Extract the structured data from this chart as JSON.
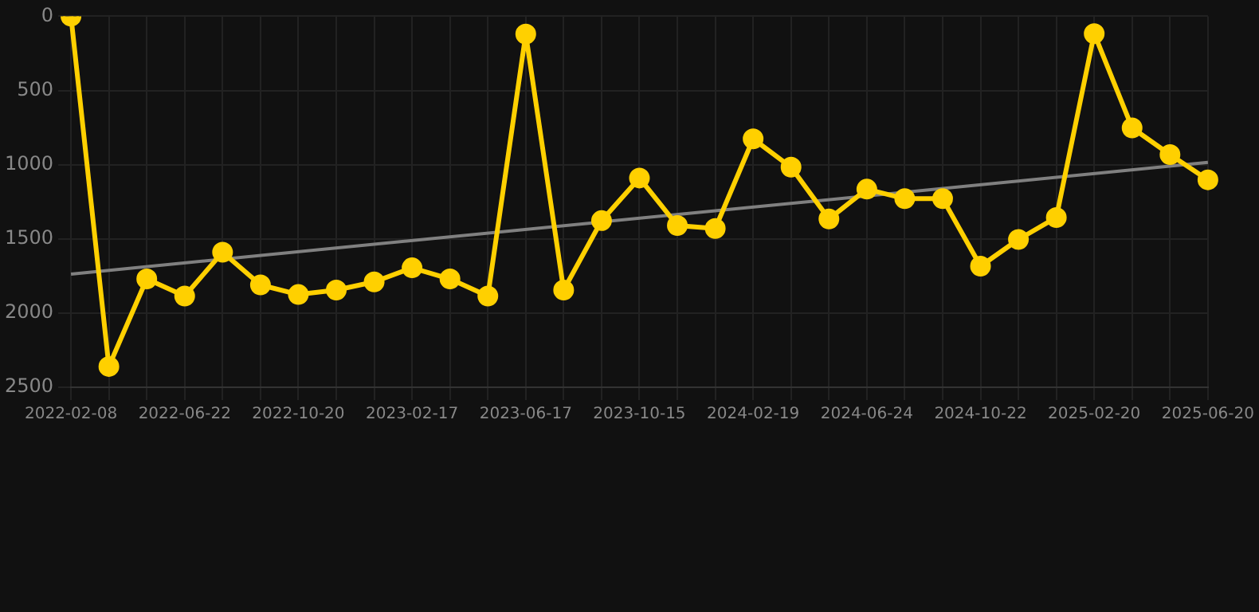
{
  "chart_data": {
    "type": "line",
    "categories": [
      "2022-02-08",
      null,
      null,
      "2022-06-22",
      null,
      null,
      "2022-10-20",
      null,
      null,
      "2023-02-17",
      null,
      null,
      "2023-06-17",
      null,
      null,
      "2023-10-15",
      null,
      null,
      "2024-02-19",
      null,
      null,
      "2024-06-24",
      null,
      null,
      "2024-10-22",
      null,
      null,
      "2025-02-20",
      null,
      null,
      "2025-06-20"
    ],
    "series": [
      {
        "type": "line",
        "color": "#ffd000",
        "marker": "circle",
        "values": [
          0,
          2360,
          1770,
          1885,
          1590,
          1810,
          1875,
          1845,
          1790,
          1695,
          1770,
          1885,
          120,
          1845,
          1377,
          1090,
          1410,
          1430,
          826,
          1017,
          1366,
          1165,
          1229,
          1229,
          1684,
          1504,
          1356,
          117,
          752,
          932,
          1102
        ]
      },
      {
        "type": "line",
        "color": "#808080",
        "marker": "none",
        "values": [
          1737,
          null,
          null,
          null,
          null,
          null,
          null,
          null,
          null,
          null,
          null,
          null,
          null,
          null,
          null,
          null,
          null,
          null,
          null,
          null,
          null,
          null,
          null,
          null,
          null,
          null,
          null,
          null,
          null,
          null,
          985
        ]
      }
    ],
    "ylim": [
      2500,
      0
    ],
    "yticks": [
      0,
      500,
      1000,
      1500,
      2000,
      2500
    ],
    "grid": true,
    "legend": false
  }
}
